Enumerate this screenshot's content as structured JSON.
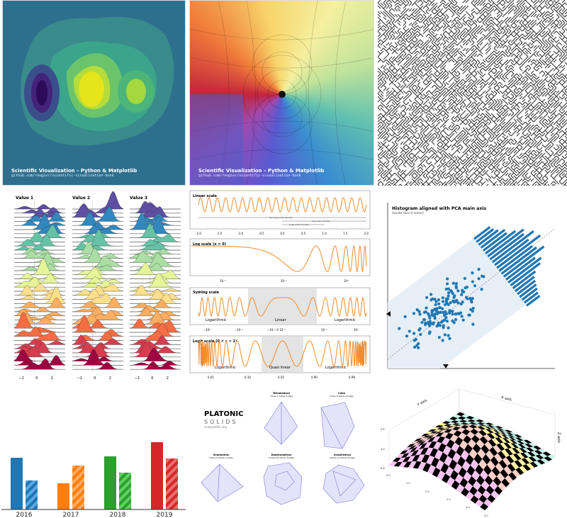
{
  "credit": {
    "title": "Scientific Visualization – Python & Matplotlib",
    "url": "github.com/rougier/scientific-visualization-book"
  },
  "ridgeline": {
    "titles": [
      "Value 1",
      "Value 2",
      "Value 3"
    ],
    "xticks": [
      "−2",
      "0",
      "2"
    ]
  },
  "scales": [
    {
      "title": "Linear scale",
      "ticks": [
        "-2.0",
        "-1.5",
        "-1.0",
        "-0.5",
        "0.0",
        "0.5",
        "1.0",
        "1.5",
        "2.0"
      ],
      "domains": [
        "SymLog scale domain",
        "Log scale domain",
        "Logit scale domain"
      ]
    },
    {
      "title": "Log scale (x > 0)",
      "ticks": [
        "10⁻²",
        "10⁻¹",
        "10⁰"
      ]
    },
    {
      "title": "Symlog scale",
      "ticks": [
        "−10⁰",
        "−10⁻¹",
        "−10⁻² 0 10⁻²",
        "10⁻¹",
        "10⁰"
      ],
      "regions": [
        "Logarithmic",
        "Linear",
        "Logarithmic"
      ]
    },
    {
      "title": "Logit scale (0 < x < 1)",
      "ticks": [
        "0.01",
        "0.10",
        "0.50",
        "0.90",
        "0.99"
      ],
      "regions": [
        "Logarithmic",
        "Quasi linear",
        "Logarithmic"
      ]
    }
  ],
  "pca": {
    "title": "Histogram aligned with PCA main axis",
    "subtitle": "(harder than it seems)"
  },
  "platonic": {
    "title": "PLATONIC",
    "subtitle": "SOLIDS",
    "site": "matplotlib.org",
    "solids": [
      {
        "name": "Tetrahedron",
        "info": "4 faces, 4 vertices, 6 edges"
      },
      {
        "name": "Cube",
        "info": "6 faces, 8 vertices, 12 edges"
      },
      {
        "name": "Octahedron",
        "info": "8 faces, 6 vertices, 12 edges"
      },
      {
        "name": "Dodecahedron",
        "info": "12 faces, 20 vertices, 30 edges"
      },
      {
        "name": "Icosahedron",
        "info": "20 faces, 12 vertices, 30 edges"
      }
    ]
  },
  "surface": {
    "xlabel": "X axis",
    "ylabel": "Y axis",
    "zlabel": "Z axis",
    "zticks": [
      "0.0",
      "1.0",
      "2.5"
    ],
    "yticks": [
      "0.0",
      "1.0",
      "2.0",
      "3.0",
      "4.0",
      "5.0"
    ]
  },
  "chart_data": [
    {
      "type": "bar",
      "categories": [
        "2016",
        "2017",
        "2018",
        "2019"
      ],
      "series": [
        {
          "name": "solid",
          "values": [
            73,
            37,
            75,
            95
          ]
        },
        {
          "name": "hatched",
          "values": [
            41,
            62,
            52,
            72
          ]
        }
      ],
      "colors": [
        "#1f77b4",
        "#ff7f0e",
        "#2ca02c",
        "#d62728"
      ],
      "light_colors": [
        "#5aa9e6",
        "#ffab66",
        "#5fd35f",
        "#e8706f"
      ],
      "ylim": [
        0,
        100
      ],
      "grid": false
    }
  ]
}
